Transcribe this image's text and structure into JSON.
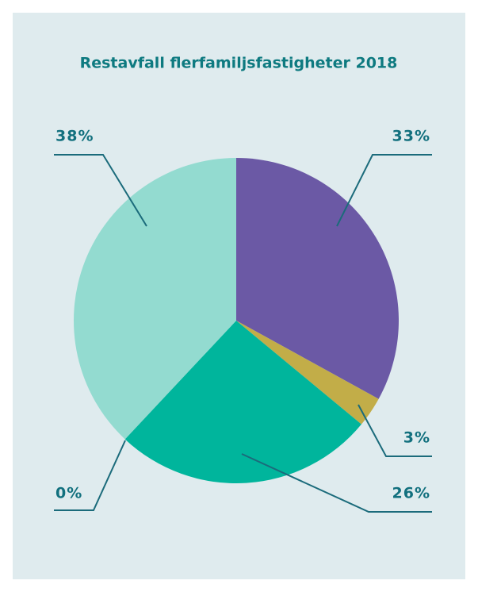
{
  "chart_data": {
    "type": "pie",
    "title": "Restavfall flerfamiljsfastigheter 2018",
    "categories": [
      null,
      null,
      null,
      null,
      null
    ],
    "values": [
      33,
      3,
      26,
      0,
      38
    ],
    "value_labels": [
      "33%",
      "3%",
      "26%",
      "0%",
      "38%"
    ],
    "colors": [
      "#6b59a5",
      "#c2ad48",
      "#00b59c",
      "#00b59c",
      "#93dbd0"
    ]
  }
}
